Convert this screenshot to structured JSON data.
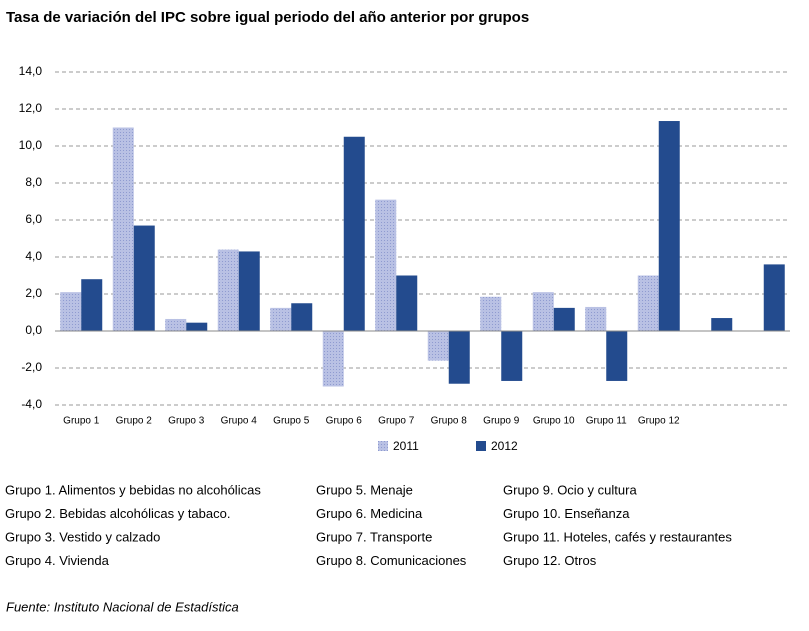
{
  "chart_data": {
    "type": "bar",
    "title": "Tasa de variación del IPC sobre igual periodo del año anterior por grupos",
    "categories": [
      "Grupo 1",
      "Grupo 2",
      "Grupo 3",
      "Grupo 4",
      "Grupo 5",
      "Grupo 6",
      "Grupo 7",
      "Grupo 8",
      "Grupo 9",
      "Grupo 10",
      "Grupo 11",
      "Grupo 12",
      null,
      null
    ],
    "series": [
      {
        "name": "2011",
        "color": "#aab4de",
        "values": [
          2.1,
          11.0,
          0.65,
          4.4,
          1.25,
          -3.0,
          7.1,
          -1.6,
          1.85,
          2.1,
          1.3,
          3.0,
          null,
          null
        ]
      },
      {
        "name": "2012",
        "color": "#234b8e",
        "values": [
          2.8,
          5.7,
          0.45,
          4.3,
          1.5,
          10.5,
          3.0,
          -2.85,
          -2.7,
          1.25,
          -2.7,
          11.35,
          0.7,
          3.6
        ]
      }
    ],
    "ylim": [
      -4,
      14
    ],
    "yticks": [
      {
        "value": 14,
        "label": "14,0"
      },
      {
        "value": 12,
        "label": "12,0"
      },
      {
        "value": 10,
        "label": "10,0"
      },
      {
        "value": 8,
        "label": "8,0"
      },
      {
        "value": 6,
        "label": "6,0"
      },
      {
        "value": 4,
        "label": "4,0"
      },
      {
        "value": 2,
        "label": "2,0"
      },
      {
        "value": 0,
        "label": "0,0"
      },
      {
        "value": -2,
        "label": "-2,0"
      },
      {
        "value": -4,
        "label": "-4,0"
      }
    ],
    "grid": true,
    "legend": "bottom",
    "group_notes": [
      "Grupo 1. Alimentos y bebidas no alcohólicas",
      "Grupo 2. Bebidas alcohólicas y  tabaco.",
      "Grupo 3. Vestido y calzado",
      "Grupo 4. Vivienda",
      "Grupo 5. Menaje",
      "Grupo 6. Medicina",
      "Grupo 7. Transporte",
      "Grupo 8. Comunicaciones",
      "Grupo 9. Ocio y cultura",
      "Grupo 10. Enseñanza",
      "Grupo 11. Hoteles, cafés y restaurantes",
      "Grupo 12. Otros"
    ],
    "source": "Fuente: Instituto Nacional de Estadística"
  }
}
